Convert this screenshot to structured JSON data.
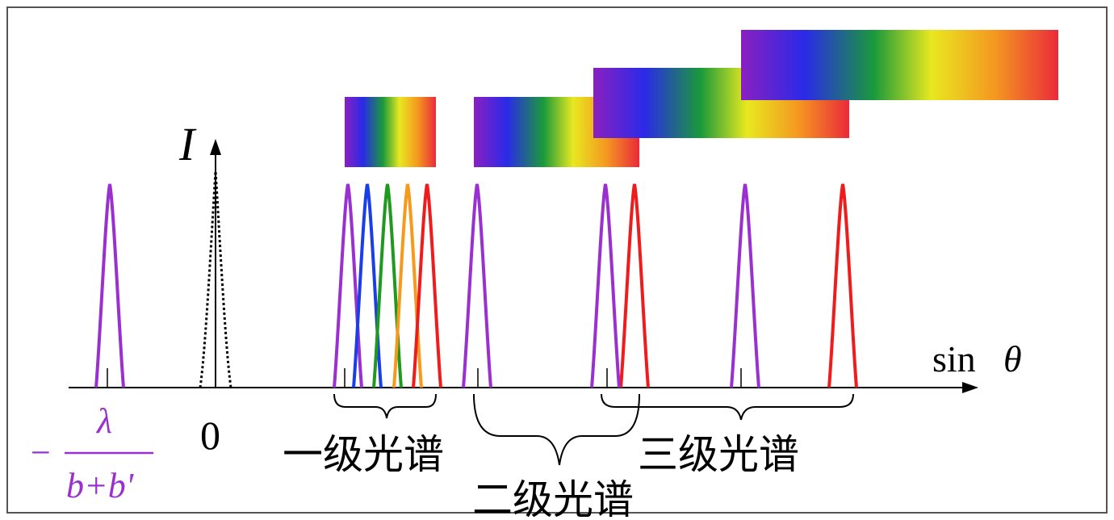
{
  "labels": {
    "y_axis": "I",
    "x_axis_sin": "sin",
    "x_axis_theta": "θ",
    "origin": "0",
    "neg_minus": "−",
    "neg_numerator": "λ",
    "neg_denominator": "b+b'",
    "first_order": "一级光谱",
    "second_order": "二级光谱",
    "third_order": "三级光谱"
  },
  "colors": {
    "violet": "#9b30d0",
    "blue": "#1a3ee8",
    "green": "#1f9a1f",
    "orange": "#f59a1c",
    "red": "#ee1c1c",
    "axis": "#000000"
  },
  "spectrum_gradient": [
    "#8a20c0",
    "#2a2ae8",
    "#1a9a3a",
    "#e8e820",
    "#f49820",
    "#ea2a3a"
  ]
}
